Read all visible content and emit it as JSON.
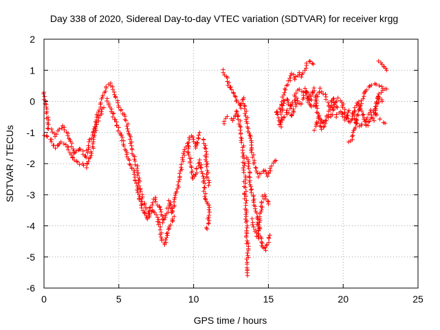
{
  "chart_data": {
    "type": "scatter",
    "title": "Day 338 of 2020, Sidereal Day-to-day VTEC variation (SDTVAR) for receiver krgg",
    "xlabel": "GPS time / hours",
    "ylabel": "SDTVAR / TECUs",
    "xlim": [
      0,
      25
    ],
    "ylim": [
      -6,
      2
    ],
    "xticks": [
      "0",
      "5",
      "10",
      "15",
      "20",
      "25"
    ],
    "yticks": [
      "-6",
      "-5",
      "-4",
      "-3",
      "-2",
      "-1",
      "0",
      "1",
      "2"
    ],
    "grid": true,
    "marker": "+",
    "series": [
      {
        "name": "SDTVAR",
        "color": "#ff0000",
        "segments": [
          [
            [
              0.0,
              0.3
            ],
            [
              0.15,
              -0.2
            ],
            [
              0.3,
              -0.9
            ],
            [
              0.5,
              -0.9
            ],
            [
              0.8,
              -1.1
            ],
            [
              1.0,
              -0.9
            ],
            [
              1.3,
              -0.8
            ],
            [
              1.6,
              -1.1
            ],
            [
              1.8,
              -1.3
            ],
            [
              2.0,
              -1.7
            ],
            [
              2.2,
              -1.6
            ],
            [
              2.4,
              -1.5
            ],
            [
              2.6,
              -1.6
            ],
            [
              2.8,
              -1.8
            ],
            [
              3.0,
              -1.4
            ],
            [
              3.2,
              -1.1
            ],
            [
              3.4,
              -0.9
            ],
            [
              3.6,
              -0.4
            ],
            [
              3.8,
              -0.1
            ],
            [
              4.0,
              0.2
            ],
            [
              4.2,
              0.5
            ],
            [
              4.4,
              0.6
            ],
            [
              4.6,
              0.4
            ],
            [
              4.8,
              0.1
            ],
            [
              5.0,
              -0.2
            ],
            [
              5.2,
              -0.3
            ],
            [
              5.4,
              -0.5
            ],
            [
              5.6,
              -0.8
            ],
            [
              5.8,
              -1.3
            ],
            [
              6.0,
              -1.8
            ],
            [
              6.2,
              -2.1
            ],
            [
              6.4,
              -2.7
            ],
            [
              6.6,
              -3.2
            ],
            [
              6.8,
              -3.4
            ],
            [
              7.0,
              -3.6
            ],
            [
              7.2,
              -3.3
            ],
            [
              7.4,
              -3.1
            ],
            [
              7.6,
              -3.3
            ],
            [
              7.8,
              -3.5
            ],
            [
              8.0,
              -3.9
            ],
            [
              8.2,
              -3.6
            ],
            [
              8.4,
              -3.2
            ],
            [
              8.6,
              -3.6
            ],
            [
              8.8,
              -3.1
            ],
            [
              9.0,
              -2.6
            ],
            [
              9.2,
              -2.1
            ],
            [
              9.4,
              -1.6
            ],
            [
              9.6,
              -1.3
            ],
            [
              9.8,
              -1.1
            ],
            [
              10.0,
              -1.2
            ],
            [
              10.2,
              -1.5
            ],
            [
              10.4,
              -1.0
            ]
          ],
          [
            [
              0.0,
              -1.1
            ],
            [
              0.4,
              -1.2
            ],
            [
              0.8,
              -1.5
            ],
            [
              1.2,
              -1.3
            ],
            [
              1.6,
              -1.5
            ],
            [
              2.0,
              -1.9
            ],
            [
              2.4,
              -2.0
            ],
            [
              2.8,
              -2.1
            ],
            [
              3.2,
              -1.6
            ],
            [
              3.6,
              -0.6
            ],
            [
              4.0,
              -0.2
            ]
          ],
          [
            [
              4.2,
              0.1
            ],
            [
              4.5,
              -0.3
            ],
            [
              4.9,
              -0.8
            ],
            [
              5.3,
              -1.3
            ],
            [
              5.6,
              -1.8
            ],
            [
              6.0,
              -2.3
            ],
            [
              6.3,
              -2.9
            ],
            [
              6.6,
              -3.5
            ],
            [
              6.9,
              -3.8
            ],
            [
              7.2,
              -3.5
            ],
            [
              7.6,
              -3.7
            ],
            [
              7.9,
              -4.5
            ],
            [
              8.1,
              -4.6
            ],
            [
              8.4,
              -4.0
            ],
            [
              8.7,
              -3.7
            ]
          ],
          [
            [
              9.6,
              -1.4
            ],
            [
              9.8,
              -2.0
            ],
            [
              10.0,
              -2.5
            ],
            [
              10.2,
              -2.2
            ],
            [
              10.4,
              -1.9
            ],
            [
              10.6,
              -2.3
            ],
            [
              10.8,
              -3.1
            ],
            [
              11.0,
              -3.3
            ],
            [
              11.0,
              -3.7
            ],
            [
              10.9,
              -4.1
            ]
          ],
          [
            [
              10.7,
              -1.2
            ],
            [
              10.8,
              -1.6
            ],
            [
              10.9,
              -2.2
            ],
            [
              11.0,
              -2.7
            ]
          ],
          [
            [
              12.0,
              1.0
            ],
            [
              12.3,
              0.6
            ],
            [
              12.6,
              0.3
            ],
            [
              12.9,
              0.0
            ],
            [
              13.1,
              -0.2
            ],
            [
              13.3,
              0.1
            ],
            [
              13.5,
              -0.4
            ],
            [
              13.7,
              -1.0
            ],
            [
              13.9,
              -1.6
            ],
            [
              14.1,
              -2.1
            ],
            [
              14.3,
              -2.4
            ],
            [
              14.5,
              -2.3
            ],
            [
              14.7,
              -2.2
            ],
            [
              14.9,
              -2.4
            ],
            [
              15.1,
              -2.2
            ],
            [
              15.3,
              -2.0
            ],
            [
              15.5,
              -1.9
            ]
          ],
          [
            [
              12.0,
              -0.7
            ],
            [
              12.3,
              -0.5
            ],
            [
              12.6,
              -0.6
            ],
            [
              12.9,
              -0.3
            ],
            [
              13.1,
              -0.7
            ],
            [
              13.3,
              -1.5
            ],
            [
              13.4,
              -2.3
            ],
            [
              13.5,
              -3.5
            ],
            [
              13.6,
              -4.6
            ],
            [
              13.6,
              -5.6
            ]
          ],
          [
            [
              13.6,
              -1.8
            ],
            [
              13.8,
              -2.6
            ],
            [
              14.0,
              -3.2
            ],
            [
              14.2,
              -3.6
            ],
            [
              14.4,
              -4.3
            ],
            [
              14.6,
              -4.7
            ],
            [
              14.8,
              -4.8
            ],
            [
              15.0,
              -4.5
            ],
            [
              15.1,
              -4.3
            ]
          ],
          [
            [
              13.9,
              -3.8
            ],
            [
              14.1,
              -4.1
            ],
            [
              14.3,
              -4.4
            ],
            [
              14.5,
              -3.5
            ],
            [
              14.7,
              -3.0
            ],
            [
              14.9,
              -3.2
            ],
            [
              15.0,
              -3.3
            ]
          ],
          [
            [
              15.5,
              -0.3
            ],
            [
              15.7,
              -0.6
            ],
            [
              15.8,
              -0.8
            ],
            [
              16.0,
              0.2
            ],
            [
              16.2,
              0.5
            ],
            [
              16.4,
              0.7
            ],
            [
              16.6,
              0.9
            ],
            [
              16.8,
              0.7
            ],
            [
              17.0,
              0.9
            ],
            [
              17.2,
              0.8
            ],
            [
              17.4,
              1.0
            ],
            [
              17.6,
              1.2
            ],
            [
              17.8,
              1.3
            ],
            [
              18.0,
              1.2
            ]
          ],
          [
            [
              15.6,
              -0.4
            ],
            [
              15.9,
              -0.1
            ],
            [
              16.2,
              0.1
            ],
            [
              16.5,
              -0.2
            ],
            [
              16.8,
              0.2
            ],
            [
              17.1,
              0.4
            ],
            [
              17.4,
              0.3
            ],
            [
              17.7,
              0.0
            ],
            [
              17.9,
              -0.2
            ],
            [
              18.1,
              -0.1
            ],
            [
              18.3,
              0.2
            ],
            [
              18.5,
              0.4
            ],
            [
              18.8,
              0.2
            ],
            [
              19.0,
              -0.1
            ],
            [
              19.3,
              -0.3
            ],
            [
              19.6,
              0.1
            ],
            [
              19.9,
              0.0
            ],
            [
              20.2,
              -0.5
            ],
            [
              20.5,
              -0.7
            ],
            [
              20.8,
              -0.2
            ],
            [
              21.0,
              0.0
            ],
            [
              21.3,
              -0.4
            ],
            [
              21.6,
              -0.8
            ],
            [
              21.9,
              -0.5
            ],
            [
              22.2,
              0.0
            ],
            [
              22.5,
              0.3
            ],
            [
              22.8,
              0.4
            ]
          ],
          [
            [
              16.0,
              -0.6
            ],
            [
              16.3,
              -0.3
            ],
            [
              16.6,
              -0.5
            ],
            [
              16.9,
              0.1
            ],
            [
              17.2,
              -0.1
            ],
            [
              17.5,
              0.4
            ],
            [
              17.8,
              0.0
            ],
            [
              18.0,
              0.4
            ],
            [
              18.3,
              -0.4
            ],
            [
              18.6,
              -0.7
            ],
            [
              18.9,
              -0.6
            ],
            [
              19.2,
              -0.4
            ],
            [
              19.5,
              -0.5
            ],
            [
              19.8,
              -0.3
            ],
            [
              20.1,
              -0.6
            ],
            [
              20.4,
              -0.3
            ],
            [
              20.7,
              -0.4
            ],
            [
              21.0,
              -0.8
            ],
            [
              21.3,
              -0.7
            ],
            [
              21.6,
              -0.5
            ],
            [
              21.9,
              -0.3
            ],
            [
              22.2,
              -0.4
            ],
            [
              22.5,
              -0.6
            ],
            [
              22.8,
              -0.7
            ]
          ],
          [
            [
              18.1,
              -0.9
            ],
            [
              18.3,
              -0.5
            ],
            [
              18.6,
              -0.9
            ],
            [
              19.0,
              -0.4
            ],
            [
              19.3,
              0.1
            ],
            [
              19.6,
              -0.2
            ]
          ],
          [
            [
              20.4,
              -1.3
            ],
            [
              20.6,
              -1.2
            ],
            [
              20.9,
              -0.6
            ],
            [
              21.1,
              -0.2
            ],
            [
              21.4,
              0.3
            ],
            [
              21.8,
              0.5
            ],
            [
              22.1,
              0.6
            ],
            [
              22.4,
              0.5
            ],
            [
              22.7,
              0.4
            ],
            [
              22.9,
              0.4
            ]
          ],
          [
            [
              22.0,
              -0.6
            ],
            [
              22.2,
              -0.3
            ],
            [
              22.4,
              0.2
            ],
            [
              22.6,
              0.0
            ]
          ],
          [
            [
              22.4,
              1.3
            ],
            [
              22.6,
              1.2
            ],
            [
              22.8,
              1.1
            ],
            [
              22.9,
              1.0
            ]
          ]
        ]
      }
    ]
  }
}
